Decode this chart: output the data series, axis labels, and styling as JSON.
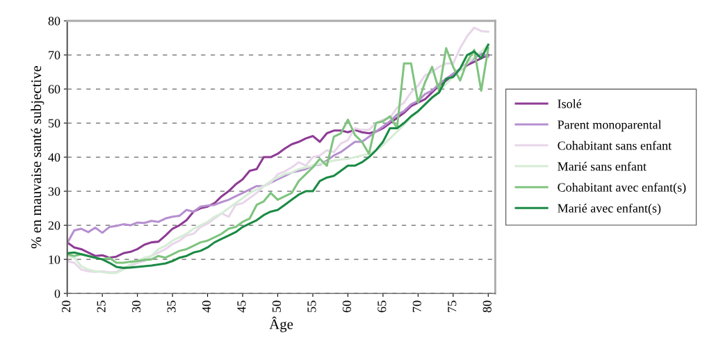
{
  "chart_data": {
    "type": "line",
    "xlabel": "Âge",
    "ylabel": "% en mauvaise santé subjective",
    "x": [
      20,
      21,
      22,
      23,
      24,
      25,
      26,
      27,
      28,
      29,
      30,
      31,
      32,
      33,
      34,
      35,
      36,
      37,
      38,
      39,
      40,
      41,
      42,
      43,
      44,
      45,
      46,
      47,
      48,
      49,
      50,
      51,
      52,
      53,
      54,
      55,
      56,
      57,
      58,
      59,
      60,
      61,
      62,
      63,
      64,
      65,
      66,
      67,
      68,
      69,
      70,
      71,
      72,
      73,
      74,
      75,
      76,
      77,
      78,
      79,
      80
    ],
    "xlim": [
      20,
      81
    ],
    "xticks": [
      20,
      25,
      30,
      35,
      40,
      45,
      50,
      55,
      60,
      65,
      70,
      75,
      80
    ],
    "ylim": [
      0,
      80
    ],
    "yticks": [
      0,
      10,
      20,
      30,
      40,
      50,
      60,
      70,
      80
    ],
    "grid": "y",
    "legend": "right",
    "marker": "none",
    "line_style": "solid",
    "series": [
      {
        "name": "Isolé",
        "color": "#8e3b95",
        "values": [
          15,
          13.5,
          13,
          12,
          11,
          11.2,
          10.5,
          10.8,
          11.8,
          12.2,
          13,
          14.3,
          15,
          15.2,
          17,
          19,
          20,
          21.5,
          24,
          25,
          25.5,
          26.5,
          28.5,
          30,
          32,
          33.5,
          36,
          36.5,
          40,
          40,
          41,
          42.5,
          43.8,
          44.5,
          45.5,
          46.2,
          44.5,
          47,
          47.8,
          47.8,
          47.3,
          48,
          47.3,
          47,
          47.5,
          48.5,
          50,
          51.5,
          53,
          55,
          56,
          57,
          59,
          61,
          62.5,
          64,
          65.5,
          67,
          68,
          69,
          70
        ]
      },
      {
        "name": "Parent monoparental",
        "color": "#b68fcf",
        "values": [
          14.8,
          18.5,
          19,
          18,
          19.3,
          17.8,
          19.5,
          19.8,
          20.3,
          20,
          20.8,
          20.7,
          21.3,
          21,
          22,
          22.5,
          22.8,
          24.5,
          24,
          25.5,
          25.8,
          26,
          26.8,
          27.5,
          28.5,
          29.5,
          30.5,
          31.5,
          31.5,
          32.5,
          33.5,
          34.5,
          35.5,
          36,
          36.5,
          37.5,
          37.8,
          39,
          40.5,
          41.5,
          43,
          44.5,
          44.5,
          46,
          47.5,
          49,
          50.5,
          52.5,
          53.5,
          55.5,
          56.5,
          58.5,
          59.5,
          61.5,
          63,
          64.5,
          66,
          67.5,
          69,
          70.5,
          69.5
        ]
      },
      {
        "name": "Cohabitant sans enfant",
        "color": "#e8d6ea",
        "values": [
          9.5,
          9,
          7,
          6.5,
          6.3,
          6.5,
          6.2,
          6.3,
          7.5,
          8,
          9,
          9.5,
          11,
          12,
          13,
          14.5,
          15.5,
          17,
          17.5,
          19.5,
          20.5,
          22,
          23.5,
          22.5,
          26,
          26.5,
          28,
          29.5,
          31.5,
          32.5,
          35,
          35.8,
          37,
          38.5,
          37.5,
          40,
          40.5,
          42,
          41.5,
          44,
          45,
          48.5,
          48,
          48,
          50,
          51,
          51.5,
          54.5,
          56,
          59,
          61,
          64,
          65,
          66.5,
          67.5,
          67.5,
          72,
          75.5,
          78,
          77,
          76.8
        ]
      },
      {
        "name": "Marié sans enfant",
        "color": "#d6ecd6",
        "values": [
          11,
          10.5,
          8,
          7,
          6.5,
          6.3,
          6,
          6,
          7,
          8.5,
          9.5,
          10.5,
          11,
          13,
          14,
          15.5,
          16.5,
          17.5,
          19,
          20,
          21,
          22.5,
          23.5,
          25,
          26.5,
          28,
          29.5,
          30.5,
          31.5,
          33,
          34,
          35,
          35.5,
          36.5,
          37,
          37.5,
          38,
          38.5,
          39,
          39.3,
          39.5,
          40,
          40.5,
          41,
          42,
          43.5,
          45.5,
          47.5,
          49.5,
          51.5,
          53.5,
          55.5,
          57.5,
          59.5,
          61.5,
          63.5,
          65.5,
          67.5,
          69.5,
          71,
          73
        ]
      },
      {
        "name": "Cohabitant avec enfant(s)",
        "color": "#7fc47f",
        "values": [
          11.5,
          11,
          11.5,
          11,
          10.5,
          10,
          10.5,
          9,
          9,
          9.3,
          9.5,
          9.8,
          10,
          11,
          10.5,
          11.5,
          12.5,
          13,
          14,
          15,
          15.5,
          16.5,
          17.5,
          19,
          19.5,
          21,
          22,
          26,
          27,
          29.5,
          27.5,
          28.5,
          29.5,
          33,
          35,
          37,
          39.5,
          37.5,
          46,
          47,
          51,
          46.5,
          44.5,
          41,
          50,
          50.5,
          52,
          48.5,
          67.5,
          67.5,
          56,
          62,
          66.5,
          59.5,
          72,
          66.5,
          62.5,
          68,
          71.5,
          59.5,
          72
        ]
      },
      {
        "name": "Marié avec enfant(s)",
        "color": "#1b8a45",
        "values": [
          11.8,
          12,
          11.5,
          11,
          10.5,
          10,
          9,
          7.8,
          7.5,
          7.6,
          7.8,
          8,
          8.2,
          8.5,
          8.8,
          9.5,
          10.5,
          11,
          12,
          12.5,
          13.5,
          15,
          16,
          17,
          18,
          19.5,
          20.5,
          21.5,
          23,
          24,
          24.5,
          26,
          27.5,
          29,
          30,
          30,
          33,
          34,
          34.5,
          36,
          37.5,
          37.5,
          38.5,
          40,
          42,
          44.5,
          48.5,
          48.5,
          50,
          52,
          53.5,
          55.5,
          57.5,
          59,
          63,
          63.5,
          66,
          70,
          71,
          69,
          73
        ]
      }
    ]
  }
}
